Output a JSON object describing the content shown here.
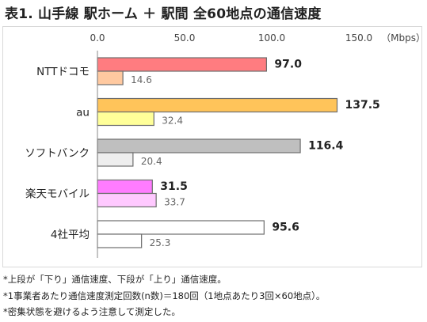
{
  "title": "表1. 山手線 駅ホーム ＋ 駅間 全60地点の通信速度",
  "chart_data": {
    "type": "bar",
    "orientation": "horizontal",
    "unit": "（Mbps）",
    "xlim": [
      0,
      150
    ],
    "ticks": [
      "0.0",
      "50.0",
      "100.0",
      "150.0"
    ],
    "tick_values": [
      0,
      50,
      100,
      150
    ],
    "grid": false,
    "categories": [
      "NTTドコモ",
      "au",
      "ソフトバンク",
      "楽天モバイル",
      "4社平均"
    ],
    "series": [
      {
        "values": [
          97.0,
          137.5,
          116.4,
          31.5,
          95.6
        ],
        "labels": [
          "97.0",
          "137.5",
          "116.4",
          "31.5",
          "95.6"
        ],
        "colors": [
          "#ff7c80",
          "#ffc45a",
          "#bfbfbf",
          "#ff7cff",
          "#ffffff"
        ]
      },
      {
        "values": [
          14.6,
          32.4,
          20.4,
          33.7,
          25.3
        ],
        "labels": [
          "14.6",
          "32.4",
          "20.4",
          "33.7",
          "25.3"
        ],
        "colors": [
          "#ffc9a0",
          "#ffff99",
          "#eeeeee",
          "#ffc9ff",
          "#ffffff"
        ]
      }
    ]
  },
  "notes": [
    "*上段が「下り」通信速度、下段が「上り」通信速度。",
    "*1事業者あたり通信速度測定回数(n数)＝180回（1地点あたり3回×60地点）。",
    "*密集状態を避けるよう注意して測定した。"
  ]
}
